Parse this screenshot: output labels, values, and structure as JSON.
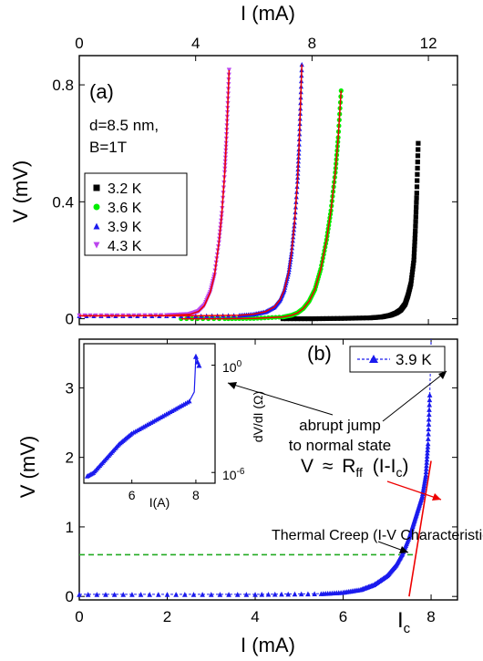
{
  "chart_data": [
    {
      "panel": "(a)",
      "type": "scatter",
      "xlabel": "I (mA)",
      "xaxis_position": "top",
      "ylabel": "V (mV)",
      "xlim": [
        0,
        13
      ],
      "ylim": [
        -0.02,
        0.9
      ],
      "xticks": [
        0,
        4,
        8,
        12
      ],
      "yticks": [
        0,
        0.4,
        0.8
      ],
      "yticklabels": [
        "0",
        "0.4",
        "0.8"
      ],
      "annotation": [
        "d=8.5 nm,",
        "B=1T"
      ],
      "legend_position": "left",
      "series": [
        {
          "name": "3.2 K",
          "color": "#000000",
          "marker": "square",
          "x": [
            7.0,
            8.0,
            9.0,
            10.0,
            10.4,
            10.7,
            10.9,
            11.05,
            11.2,
            11.3,
            11.4,
            11.5,
            11.55,
            11.6,
            11.65
          ],
          "y": [
            0.0,
            0.0,
            0.001,
            0.003,
            0.006,
            0.012,
            0.02,
            0.03,
            0.05,
            0.08,
            0.12,
            0.2,
            0.3,
            0.43,
            0.6
          ]
        },
        {
          "name": "3.6 K",
          "color": "#00ee00",
          "marker": "circle",
          "x": [
            3.5,
            5.0,
            6.0,
            7.0,
            7.3,
            7.5,
            7.7,
            7.9,
            8.1,
            8.3,
            8.5,
            8.65,
            8.8,
            8.9,
            9.0
          ],
          "y": [
            0.0,
            0.0,
            0.001,
            0.006,
            0.012,
            0.02,
            0.035,
            0.06,
            0.1,
            0.17,
            0.27,
            0.37,
            0.5,
            0.62,
            0.78
          ]
        },
        {
          "name": "3.9 K",
          "color": "#1a1aee",
          "marker": "triangle-up",
          "x": [
            0.0,
            2.0,
            4.0,
            5.5,
            6.0,
            6.4,
            6.7,
            6.9,
            7.05,
            7.2,
            7.3,
            7.4,
            7.5,
            7.55,
            7.6,
            7.65
          ],
          "y": [
            0.01,
            0.01,
            0.01,
            0.012,
            0.016,
            0.024,
            0.04,
            0.065,
            0.1,
            0.16,
            0.23,
            0.33,
            0.47,
            0.58,
            0.72,
            0.87
          ]
        },
        {
          "name": "4.3 K",
          "color": "#bb44ee",
          "marker": "triangle-down",
          "x": [
            0.0,
            1.5,
            3.0,
            3.8,
            4.1,
            4.3,
            4.5,
            4.65,
            4.8,
            4.9,
            5.0,
            5.05,
            5.1,
            5.15
          ],
          "y": [
            0.01,
            0.01,
            0.011,
            0.015,
            0.025,
            0.045,
            0.09,
            0.15,
            0.26,
            0.36,
            0.5,
            0.6,
            0.72,
            0.85
          ]
        }
      ]
    },
    {
      "panel": "(b)",
      "type": "scatter",
      "xlabel": "I (mA)",
      "ylabel": "V (mV)",
      "xlim": [
        0,
        8.6
      ],
      "ylim": [
        -0.05,
        3.7
      ],
      "xticks": [
        0,
        2,
        4,
        6,
        8
      ],
      "yticks": [
        0,
        1,
        2,
        3
      ],
      "series": [
        {
          "name": "3.9 K",
          "color": "#1a1aee",
          "marker": "triangle-up",
          "line": "dashed",
          "x": [
            0.0,
            2.0,
            4.0,
            5.5,
            6.0,
            6.4,
            6.7,
            7.0,
            7.2,
            7.35,
            7.5,
            7.6,
            7.7,
            7.8,
            7.88,
            7.93,
            7.97,
            8.0
          ],
          "y": [
            0.03,
            0.03,
            0.03,
            0.04,
            0.06,
            0.1,
            0.17,
            0.3,
            0.45,
            0.62,
            0.85,
            1.05,
            1.25,
            1.45,
            1.75,
            2.2,
            2.9,
            3.9
          ]
        }
      ],
      "fit_lines": [
        {
          "label": "Thermal Creep (I-V Characteristics)",
          "color": "#22aa22",
          "style": "dashed",
          "x": [
            0.0,
            7.6
          ],
          "y": [
            0.6,
            0.6
          ]
        },
        {
          "label": "V ≈ R_ff (I-I_c)",
          "color": "#ee0000",
          "style": "solid",
          "x": [
            7.5,
            8.0
          ],
          "y": [
            0.0,
            1.95
          ]
        }
      ],
      "annotations": [
        {
          "text": "abrupt jump"
        },
        {
          "text": "to normal state"
        }
      ],
      "formula": {
        "v": "V",
        "approx": "≈",
        "r": "R",
        "r_sub": "ff",
        "paren_open": "(I-I",
        "c_sub": "c",
        "paren_close": ")"
      },
      "ic_label": {
        "main": "I",
        "sub": "c"
      },
      "inset": {
        "type": "scatter",
        "xlabel": "I(A)",
        "ylabel": "dV/dI (Ω)",
        "y_scale": "log",
        "xticks": [
          6,
          8
        ],
        "ytick_labels": [
          {
            "base": "10",
            "exp": "0"
          },
          {
            "base": "10",
            "exp": "-6"
          }
        ],
        "x": [
          4.6,
          4.8,
          5.0,
          5.2,
          5.4,
          5.6,
          5.8,
          6.0,
          6.3,
          6.6,
          6.9,
          7.2,
          7.5,
          7.8,
          7.95,
          8.0,
          8.05,
          8.1
        ],
        "y": [
          -6.2,
          -6.0,
          -5.6,
          -5.2,
          -4.8,
          -4.4,
          -4.1,
          -3.8,
          -3.5,
          -3.2,
          -2.9,
          -2.6,
          -2.3,
          -2.0,
          -1.5,
          0.5,
          0.2,
          0.0
        ]
      }
    }
  ]
}
